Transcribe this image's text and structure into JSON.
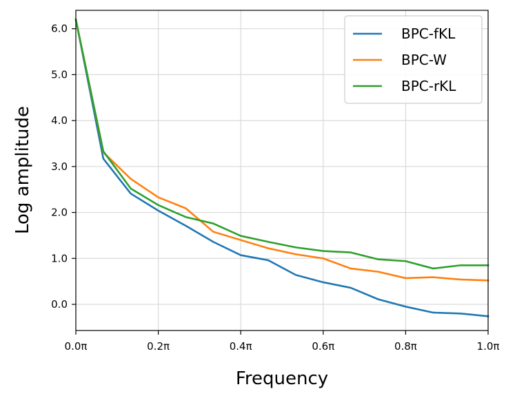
{
  "chart_data": {
    "type": "line",
    "xlabel": "Frequency",
    "ylabel": "Log amplitude",
    "xlim": [
      0,
      1
    ],
    "ylim": [
      -0.57,
      6.4
    ],
    "grid": true,
    "legend_position": "top-right",
    "x_ticks": [
      {
        "value": 0.0,
        "label": "0.0π"
      },
      {
        "value": 0.2,
        "label": "0.2π"
      },
      {
        "value": 0.4,
        "label": "0.4π"
      },
      {
        "value": 0.6,
        "label": "0.6π"
      },
      {
        "value": 0.8,
        "label": "0.8π"
      },
      {
        "value": 1.0,
        "label": "1.0π"
      }
    ],
    "y_ticks": [
      {
        "value": 0,
        "label": "0.0"
      },
      {
        "value": 1,
        "label": "1.0"
      },
      {
        "value": 2,
        "label": "2.0"
      },
      {
        "value": 3,
        "label": "3.0"
      },
      {
        "value": 4,
        "label": "4.0"
      },
      {
        "value": 5,
        "label": "5.0"
      },
      {
        "value": 6,
        "label": "6.0"
      }
    ],
    "x": [
      0,
      0.0667,
      0.1333,
      0.2,
      0.2667,
      0.3333,
      0.4,
      0.4667,
      0.5333,
      0.6,
      0.6667,
      0.7333,
      0.8,
      0.8667,
      0.9333,
      1.0
    ],
    "series": [
      {
        "name": "BPC-fKL",
        "color": "#1f77b4",
        "values": [
          6.2,
          3.17,
          2.41,
          2.04,
          1.71,
          1.36,
          1.07,
          0.96,
          0.64,
          0.48,
          0.36,
          0.11,
          -0.05,
          -0.18,
          -0.2,
          -0.26
        ]
      },
      {
        "name": "BPC-W",
        "color": "#ff7f0e",
        "values": [
          6.2,
          3.31,
          2.73,
          2.33,
          2.09,
          1.58,
          1.4,
          1.22,
          1.09,
          1.0,
          0.78,
          0.71,
          0.57,
          0.59,
          0.54,
          0.52
        ]
      },
      {
        "name": "BPC-rKL",
        "color": "#2ca02c",
        "values": [
          6.2,
          3.33,
          2.52,
          2.16,
          1.9,
          1.76,
          1.49,
          1.36,
          1.24,
          1.16,
          1.13,
          0.98,
          0.94,
          0.78,
          0.85,
          0.85
        ]
      }
    ]
  }
}
